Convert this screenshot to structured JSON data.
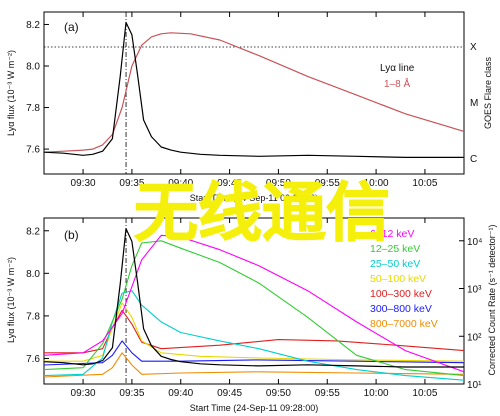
{
  "colors": {
    "flux": "#000000",
    "goes": "#c8545a",
    "overlay_text": "#f5ef0c",
    "series": {
      "6-12 keV": "#ff00ff",
      "12-25 keV": "#33cc33",
      "25-50 keV": "#00d0d0",
      "50-100 keV": "#e8d800",
      "100-300 keV": "#e02020",
      "300-800 keV": "#1a1aff",
      "800-7000 keV": "#f08c00"
    }
  },
  "overlay": {
    "text": "无线通信"
  },
  "panels": {
    "a": {
      "letter": "(a)",
      "ylabel": "Lyα flux (10⁻³ W m⁻²)",
      "right_label": "GOES Flare class",
      "right_ticks": [
        "X",
        "M",
        "C"
      ],
      "x_ticks": [
        "09:30",
        "09:35",
        "09:40",
        "09:45",
        "09:50",
        "09:55",
        "10:00",
        "10:05"
      ],
      "xlabel": "Start Time (24-Sep-11 09:28:00)",
      "y_ticks": [
        "7.6",
        "7.8",
        "8.0",
        "8.2"
      ],
      "legend": {
        "lya": "Lyα line",
        "goes": "1–8 Å"
      }
    },
    "b": {
      "letter": "(b)",
      "ylabel": "Lyα flux (10⁻³ W m⁻²)",
      "right_label": "Corrected Count Rate (s⁻¹ detector⁻¹)",
      "right_ticks": [
        "10⁴",
        "10³",
        "10²",
        "10¹"
      ],
      "x_ticks": [
        "09:30",
        "09:35",
        "09:40",
        "09:45",
        "09:50",
        "09:55",
        "10:00",
        "10:05"
      ],
      "xlabel": "Start Time (24-Sep-11 09:28:00)",
      "y_ticks": [
        "7.6",
        "7.8",
        "8.0",
        "8.2"
      ],
      "legend": [
        "6–12 keV",
        "12–25 keV",
        "25–50 keV",
        "50–100 keV",
        "100–300 keV",
        "300–800 keV",
        "800–7000 keV"
      ]
    }
  },
  "chart_data": [
    {
      "type": "line",
      "panel": "a",
      "xlim": [
        -2,
        41
      ],
      "ylim": [
        7.48,
        8.26
      ],
      "x_unit": "minutes after 09:28:00",
      "series": [
        {
          "name": "Lyα line",
          "x": [
            -2,
            0,
            2,
            3,
            4,
            5,
            5.8,
            6.4,
            7,
            7.6,
            8.2,
            9,
            10,
            11,
            12,
            14,
            16,
            20,
            25,
            30,
            35,
            41
          ],
          "values": [
            7.585,
            7.58,
            7.57,
            7.575,
            7.59,
            7.65,
            7.95,
            8.21,
            8.15,
            7.95,
            7.74,
            7.66,
            7.61,
            7.595,
            7.585,
            7.575,
            7.57,
            7.565,
            7.57,
            7.565,
            7.56,
            7.56
          ]
        },
        {
          "name": "1–8 Å",
          "x": [
            -2,
            0,
            2,
            3,
            4,
            5,
            6,
            7,
            8,
            9,
            10,
            11,
            13,
            16,
            20,
            25,
            30,
            35,
            41
          ],
          "values": [
            7.585,
            7.59,
            7.595,
            7.6,
            7.62,
            7.67,
            7.8,
            8.0,
            8.1,
            8.14,
            8.155,
            8.16,
            8.155,
            8.125,
            8.05,
            7.95,
            7.86,
            7.77,
            7.685
          ]
        }
      ]
    },
    {
      "type": "line",
      "panel": "b",
      "xlim": [
        -2,
        41
      ],
      "y_left_lim": [
        7.48,
        8.26
      ],
      "y_right_scale": "log",
      "y_right_lim": [
        10,
        30000
      ],
      "series": [
        {
          "name": "Lyα line",
          "x": [
            -2,
            0,
            2,
            3,
            4,
            5,
            5.8,
            6.4,
            7,
            7.6,
            8.2,
            9,
            10,
            11,
            12,
            14,
            16,
            20,
            25,
            30,
            35,
            41
          ],
          "values": [
            7.585,
            7.58,
            7.57,
            7.575,
            7.59,
            7.65,
            7.95,
            8.21,
            8.15,
            7.95,
            7.74,
            7.66,
            7.61,
            7.595,
            7.585,
            7.575,
            7.57,
            7.565,
            7.57,
            7.565,
            7.56,
            7.56
          ]
        },
        {
          "name": "6–12 keV",
          "x": [
            -2,
            2,
            4,
            6,
            8,
            10,
            12,
            16,
            20,
            25,
            30,
            35,
            41
          ],
          "values": [
            40,
            45,
            80,
            300,
            4000,
            13000,
            12000,
            6500,
            3000,
            900,
            200,
            50,
            18
          ]
        },
        {
          "name": "12–25 keV",
          "x": [
            -2,
            2,
            4,
            6,
            7,
            8,
            10,
            12,
            16,
            20,
            25,
            30,
            35,
            41
          ],
          "values": [
            20,
            22,
            70,
            600,
            3000,
            9000,
            10000,
            7000,
            3500,
            1300,
            250,
            40,
            20,
            15
          ]
        },
        {
          "name": "25–50 keV",
          "x": [
            -2,
            2,
            4,
            5,
            6,
            7,
            8,
            10,
            12,
            16,
            20,
            25,
            30,
            35,
            41
          ],
          "values": [
            15,
            16,
            35,
            200,
            800,
            900,
            450,
            200,
            120,
            80,
            55,
            30,
            20,
            15,
            12
          ]
        },
        {
          "name": "50–100 keV",
          "x": [
            -2,
            2,
            4,
            5,
            6,
            7,
            8,
            10,
            14,
            20,
            30,
            41
          ],
          "values": [
            30,
            30,
            40,
            150,
            500,
            250,
            80,
            45,
            38,
            35,
            32,
            30
          ]
        },
        {
          "name": "100–300 keV",
          "x": [
            -2,
            2,
            4,
            5,
            6,
            7,
            8,
            10,
            16,
            22,
            28,
            34,
            41
          ],
          "values": [
            45,
            45,
            55,
            150,
            350,
            180,
            75,
            55,
            65,
            85,
            80,
            65,
            50
          ]
        },
        {
          "name": "300–800 keV",
          "x": [
            -2,
            4,
            5,
            6,
            7,
            8,
            12,
            20,
            30,
            41
          ],
          "values": [
            25,
            28,
            40,
            80,
            45,
            30,
            30,
            32,
            30,
            28
          ]
        },
        {
          "name": "800–7000 keV",
          "x": [
            -2,
            4,
            5,
            6,
            7,
            8,
            12,
            20,
            30,
            41
          ],
          "values": [
            14,
            16,
            22,
            45,
            25,
            16,
            17,
            18,
            17,
            16
          ]
        }
      ]
    }
  ]
}
